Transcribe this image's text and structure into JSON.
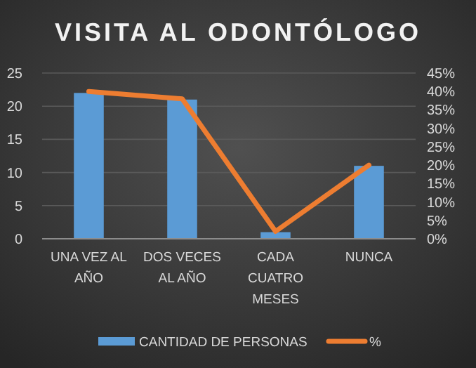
{
  "chart_data": {
    "type": "bar",
    "title": "VISITA AL ODONTÓLOGO",
    "categories": [
      "UNA VEZ AL AÑO",
      "DOS VECES AL AÑO",
      "CADA CUATRO MESES",
      "NUNCA"
    ],
    "series": [
      {
        "name": "CANTIDAD DE PERSONAS",
        "color": "#5b9bd5",
        "values": [
          22,
          21,
          1,
          11
        ]
      },
      {
        "name": "%",
        "type": "line",
        "axis": "y2",
        "color": "#ed7d31",
        "values": [
          40,
          38,
          2,
          20
        ]
      }
    ],
    "ylim": [
      0,
      25
    ],
    "yticks": [
      0,
      5,
      10,
      15,
      20,
      25
    ],
    "y2lim": [
      0,
      45
    ],
    "y2ticks": [
      {
        "value": 0,
        "label": "0%"
      },
      {
        "value": 5,
        "label": "5%"
      },
      {
        "value": 10,
        "label": "10%"
      },
      {
        "value": 15,
        "label": "15%"
      },
      {
        "value": 20,
        "label": "20%"
      },
      {
        "value": 25,
        "label": "25%"
      },
      {
        "value": 30,
        "label": "30%"
      },
      {
        "value": 35,
        "label": "35%"
      },
      {
        "value": 40,
        "label": "40%"
      },
      {
        "value": 45,
        "label": "45%"
      }
    ],
    "grid": "y",
    "legend": "bottom",
    "marker": "none",
    "line_style": "solid"
  }
}
